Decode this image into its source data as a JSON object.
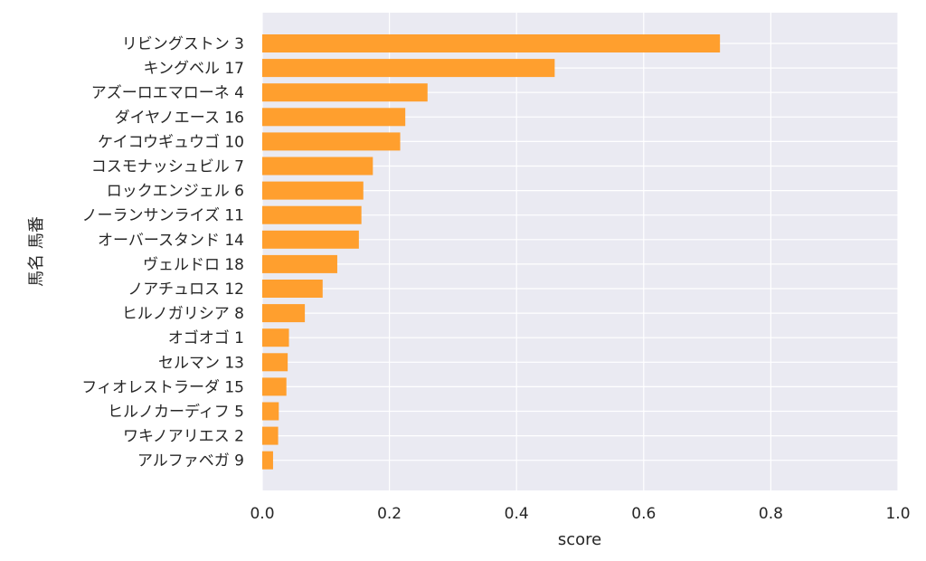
{
  "chart_data": {
    "type": "bar",
    "orientation": "horizontal",
    "xlabel": "score",
    "ylabel": "馬名 馬番",
    "xlim": [
      0,
      1
    ],
    "xticks": [
      "0.0",
      "0.2",
      "0.4",
      "0.6",
      "0.8",
      "1.0"
    ],
    "grid": true,
    "bar_color": "#ff9f2e",
    "background_color": "#eaeaf2",
    "categories": [
      "リビングストン 3",
      "キングベル 17",
      "アズーロエマローネ 4",
      "ダイヤノエース 16",
      "ケイコウギュウゴ 10",
      "コスモナッシュビル 7",
      "ロックエンジェル 6",
      "ノーランサンライズ 11",
      "オーバースタンド 14",
      "ヴェルドロ 18",
      "ノアチュロス 12",
      "ヒルノガリシア 8",
      "オゴオゴ 1",
      "セルマン 13",
      "フィオレストラーダ 15",
      "ヒルノカーディフ 5",
      "ワキノアリエス 2",
      "アルファベガ 9"
    ],
    "values": [
      0.72,
      0.46,
      0.26,
      0.225,
      0.217,
      0.174,
      0.159,
      0.156,
      0.152,
      0.118,
      0.095,
      0.067,
      0.042,
      0.04,
      0.038,
      0.026,
      0.025,
      0.017
    ]
  }
}
